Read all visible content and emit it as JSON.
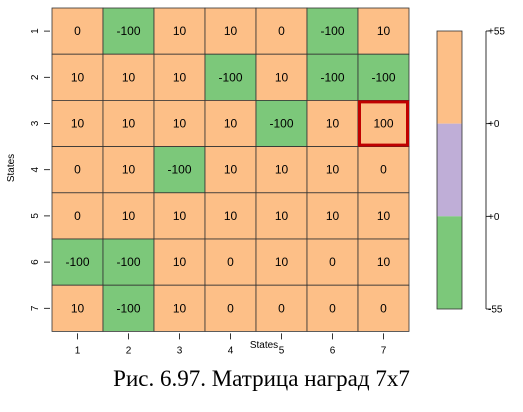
{
  "chart_data": {
    "type": "heatmap",
    "rows": [
      "1",
      "2",
      "3",
      "4",
      "5",
      "6",
      "7"
    ],
    "columns": [
      "1",
      "2",
      "3",
      "4",
      "5",
      "6",
      "7"
    ],
    "values": [
      [
        0,
        -100,
        10,
        10,
        0,
        -100,
        10
      ],
      [
        10,
        10,
        10,
        -100,
        10,
        -100,
        -100
      ],
      [
        10,
        10,
        10,
        10,
        -100,
        10,
        100
      ],
      [
        0,
        10,
        -100,
        10,
        10,
        10,
        0
      ],
      [
        0,
        10,
        10,
        10,
        10,
        10,
        10
      ],
      [
        -100,
        -100,
        10,
        0,
        10,
        0,
        10
      ],
      [
        10,
        -100,
        10,
        0,
        0,
        0,
        0
      ]
    ],
    "xlabel": "States",
    "ylabel": "States",
    "highlight_cell": {
      "row": "3",
      "column": "7",
      "border_color": "#c00000"
    },
    "colors": {
      "positive": "#fdbf87",
      "negative": "#7cc87a",
      "middle": "#bfaed7",
      "border": "#333333"
    },
    "legend": {
      "placement": "right",
      "tick_labels": [
        "+55",
        "+0",
        "+0",
        "-55"
      ],
      "segments": [
        "positive",
        "middle",
        "negative"
      ]
    },
    "grid": true
  },
  "caption": "Рис. 6.97. Матрица наград 7х7"
}
